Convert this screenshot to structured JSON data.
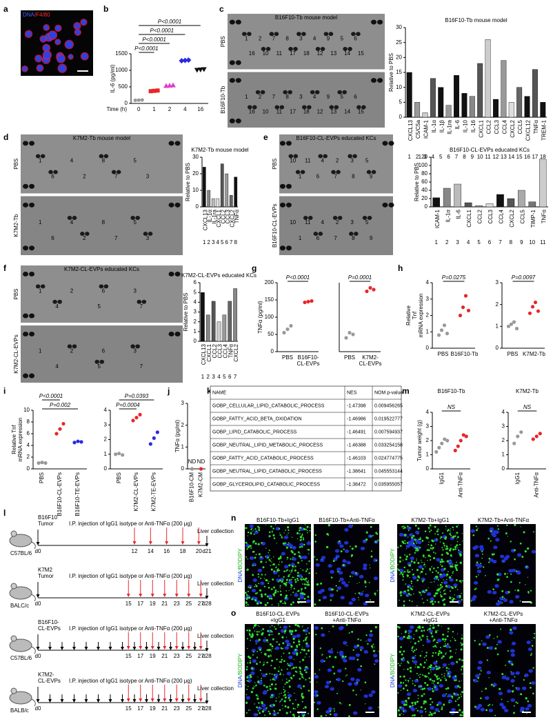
{
  "a": {
    "letter": "a",
    "stain": [
      "DNA",
      "/F4/80"
    ]
  },
  "b": {
    "letter": "b",
    "chart": {
      "type": "dot",
      "ylabel": "IL-6 (pg/ml)",
      "xlabel": "Time (h)",
      "ylim": [
        0,
        1500
      ],
      "yticks": [
        0,
        500,
        1000,
        1500
      ],
      "groups": [
        {
          "name": 0,
          "color": "#999999",
          "marker": "circle",
          "values": [
            95,
            100,
            105
          ]
        },
        {
          "name": 1,
          "color": "#e8262a",
          "marker": "square",
          "values": [
            370,
            380,
            390
          ]
        },
        {
          "name": 2,
          "color": "#e040c8",
          "marker": "triangle",
          "values": [
            530,
            540,
            550
          ]
        },
        {
          "name": 4,
          "color": "#2a2ae0",
          "marker": "diamond",
          "values": [
            1290,
            1300,
            1310
          ]
        },
        {
          "name": 16,
          "color": "#111111",
          "marker": "triangle-down",
          "values": [
            1010,
            1020,
            1030
          ]
        }
      ],
      "annotations": [
        "P<0.0001",
        "P<0.0001",
        "P<0.0001",
        "P<0.0001"
      ]
    }
  },
  "c": {
    "letter": "c",
    "blot": {
      "title": "B16F10-Tb mouse model",
      "rows": [
        {
          "name": "PBS",
          "spots": [
            1,
            2,
            7,
            8,
            3,
            4,
            9,
            5,
            6,
            16,
            10,
            11,
            17,
            18,
            12,
            13,
            14,
            15
          ]
        },
        {
          "name": "B16F10-Tb",
          "spots": [
            1,
            2,
            7,
            8,
            3,
            4,
            9,
            5,
            6,
            16,
            10,
            11,
            17,
            18,
            12,
            13,
            14,
            15
          ]
        }
      ]
    },
    "chart": {
      "type": "bar",
      "title": "B16F10-Tb mouse model",
      "ylabel": "Relative to PBS",
      "ylim": [
        0,
        30
      ],
      "yticks": [
        0,
        5,
        10,
        15,
        20,
        25,
        30
      ],
      "categories": [
        "CXCL13",
        "C5/C5a",
        "ICAM-1",
        "IL-1α",
        "IL-1β",
        "IL-1ra",
        "IL-6",
        "IL-10",
        "IL-16",
        "CXCL1",
        "CCL2",
        "CCL3",
        "CCL4",
        "CXCL2",
        "CCL5",
        "CXCL12",
        "TNFα",
        "TREM-1"
      ],
      "indices": [
        1,
        2,
        3,
        4,
        5,
        6,
        7,
        8,
        9,
        10,
        11,
        12,
        13,
        14,
        15,
        16,
        17,
        18
      ],
      "values": [
        15,
        5,
        1.5,
        13,
        10,
        4,
        14,
        8,
        7,
        18,
        26,
        6,
        19,
        5,
        10,
        7,
        16,
        5
      ],
      "colors": [
        "#111111",
        "#999999",
        "#cccccc",
        "#555555",
        "#111111",
        "#999999",
        "#111111",
        "#111111",
        "#888888",
        "#555555",
        "#cccccc",
        "#111111",
        "#999999",
        "#dddddd",
        "#666666",
        "#111111",
        "#555555",
        "#111111"
      ]
    }
  },
  "d": {
    "letter": "d",
    "blot": {
      "title": "K7M2-Tb mouse model",
      "rows": [
        {
          "name": "PBS",
          "spots": [
            1,
            4,
            8,
            5,
            6,
            2,
            7,
            3
          ]
        },
        {
          "name": "K7M2-Tb",
          "spots": [
            1,
            4,
            8,
            5,
            6,
            2,
            7,
            3
          ]
        }
      ]
    },
    "chart": {
      "type": "bar",
      "title": "K7M2-Tb mouse model",
      "ylabel": "Relative to PBS",
      "ylim": [
        0,
        30
      ],
      "yticks": [
        0,
        10,
        20,
        30
      ],
      "categories": [
        "CXCL13",
        "IL-1α",
        "IL-1ra",
        "CXCL1",
        "CCL2",
        "CCL3",
        "CXCL2",
        "TNFα"
      ],
      "indices": [
        1,
        2,
        3,
        4,
        5,
        6,
        7,
        8
      ],
      "values": [
        24,
        10,
        5,
        5,
        26,
        20,
        7,
        18
      ],
      "colors": [
        "#111111",
        "#888888",
        "#bbbbbb",
        "#dddddd",
        "#555555",
        "#999999",
        "#666666",
        "#111111"
      ]
    }
  },
  "e": {
    "letter": "e",
    "blot": {
      "title": "B16F10-CL-EVPs educated KCs",
      "rows": [
        {
          "name": "PBS",
          "spots": [
            10,
            11,
            4,
            2,
            3,
            5,
            1,
            6,
            7,
            8,
            9
          ]
        },
        {
          "name": "B16F10-CL-EVPs",
          "spots": [
            10,
            11,
            4,
            2,
            3,
            5,
            1,
            6,
            7,
            8,
            9
          ]
        }
      ]
    },
    "chart": {
      "type": "bar",
      "title": "B16F10-CL-EVPs educated KCs",
      "ylabel": "Relative to PBS",
      "ylim": [
        0,
        120
      ],
      "yticks": [
        0,
        20,
        40,
        60,
        80,
        100,
        120
      ],
      "categories": [
        "ICAM-1",
        "IL-1α",
        "IL-6",
        "CXCL1",
        "CCL2",
        "CCL3",
        "CCL4",
        "CXCL2",
        "CCL5",
        "TIMP-1",
        "TNFα"
      ],
      "indices": [
        1,
        2,
        3,
        4,
        5,
        6,
        7,
        8,
        9,
        10,
        11
      ],
      "values": [
        22,
        45,
        55,
        10,
        3,
        8,
        30,
        20,
        40,
        12,
        115
      ],
      "colors": [
        "#111111",
        "#888888",
        "#bbbbbb",
        "#555555",
        "#999999",
        "#dddddd",
        "#111111",
        "#555555",
        "#aaaaaa",
        "#777777",
        "#cccccc"
      ]
    }
  },
  "f": {
    "letter": "f",
    "blot": {
      "title": "K7M2-CL-EVPs educated KCs",
      "rows": [
        {
          "name": "PBS",
          "spots": [
            1,
            2,
            6,
            3,
            4,
            5,
            7
          ]
        },
        {
          "name": "K7M2-CL-EVPs",
          "spots": [
            1,
            2,
            6,
            3,
            4,
            5,
            7
          ]
        }
      ]
    },
    "chart": {
      "type": "bar",
      "title": "K7M2-CL-EVPs educated KCs",
      "ylabel": "Relative to PBS",
      "ylim": [
        0,
        6
      ],
      "yticks": [
        0,
        1,
        2,
        3,
        4,
        5,
        6
      ],
      "categories": [
        "CXCL13",
        "CXCL1",
        "CCL2",
        "CCL3",
        "CCL4",
        "TNFα",
        "CXCL2"
      ],
      "indices": [
        1,
        2,
        3,
        4,
        5,
        6,
        7
      ],
      "values": [
        5,
        2.7,
        4.1,
        2,
        2.7,
        4.1,
        5.4
      ],
      "colors": [
        "#111111",
        "#888888",
        "#555555",
        "#cccccc",
        "#999999",
        "#666666",
        "#888888"
      ]
    }
  },
  "g": {
    "letter": "g",
    "charts": [
      {
        "type": "dot",
        "ylabel": "TNFα (pg/ml)",
        "ylim": [
          0,
          200
        ],
        "yticks": [
          0,
          50,
          100,
          150,
          200
        ],
        "groups": [
          {
            "name": "PBS",
            "color": "#999999",
            "marker": "circle",
            "values": [
              55,
              65,
              75
            ]
          },
          {
            "name": [
              "B16F10-",
              "CL-EVPs"
            ],
            "color": "#e8262a",
            "marker": "circle",
            "values": [
              143,
              145,
              147
            ]
          }
        ],
        "annotations": [
          "P<0.0001"
        ]
      },
      {
        "type": "dot",
        "ylim": [
          0,
          200
        ],
        "groups": [
          {
            "name": "PBS",
            "color": "#999999",
            "marker": "circle",
            "values": [
              40,
              55,
              50
            ]
          },
          {
            "name": [
              "K7M2-",
              "CL-EVPs"
            ],
            "color": "#e8262a",
            "marker": "circle",
            "values": [
              175,
              185,
              180
            ]
          }
        ],
        "annotations": [
          "P=0.0001"
        ]
      }
    ]
  },
  "h": {
    "letter": "h",
    "charts": [
      {
        "type": "dot",
        "ylabel": [
          "Relative",
          "Tnf",
          "mRNA expression"
        ],
        "ylim": [
          0,
          4
        ],
        "yticks": [
          0,
          1,
          2,
          3,
          4
        ],
        "groups": [
          {
            "name": "PBS",
            "color": "#999999",
            "marker": "circle",
            "values": [
              0.8,
              1.1,
              1.4,
              0.9
            ]
          },
          {
            "name": "B16F10-Tb",
            "color": "#e8262a",
            "marker": "circle",
            "values": [
              2.0,
              2.5,
              3.2,
              2.3
            ]
          }
        ],
        "annotations": [
          "P=0.0275"
        ]
      },
      {
        "type": "dot",
        "ylim": [
          0,
          3
        ],
        "yticks": [
          0,
          1,
          2,
          3
        ],
        "groups": [
          {
            "name": "PBS",
            "color": "#999999",
            "marker": "circle",
            "values": [
              1.0,
              1.1,
              1.2,
              0.9
            ]
          },
          {
            "name": "K7M2-Tb",
            "color": "#e8262a",
            "marker": "circle",
            "values": [
              1.6,
              1.9,
              2.1,
              1.7
            ]
          }
        ],
        "annotations": [
          "P=0.0097"
        ]
      }
    ]
  },
  "i": {
    "letter": "i",
    "charts": [
      {
        "type": "dot",
        "ylabel": [
          "Relative Tnf",
          "mRNA expression"
        ],
        "ylim": [
          0,
          10
        ],
        "yticks": [
          0,
          2,
          4,
          6,
          8,
          10
        ],
        "groups": [
          {
            "name": "PBS",
            "color": "#999999",
            "marker": "circle",
            "values": [
              1,
              1.1,
              1.0
            ]
          },
          {
            "name": "B16F10-CL-EVPs",
            "color": "#e8262a",
            "marker": "circle",
            "values": [
              6,
              6.8,
              7.7
            ]
          },
          {
            "name": "B16F10-TE-EVPs",
            "color": "#2a2ae0",
            "marker": "circle",
            "values": [
              4.5,
              4.7,
              4.6
            ]
          }
        ],
        "annotations": [
          "P<0.0001",
          "P=0.002"
        ]
      },
      {
        "type": "dot",
        "ylim": [
          0,
          4
        ],
        "yticks": [
          0,
          1,
          2,
          3,
          4
        ],
        "groups": [
          {
            "name": "PBS",
            "color": "#999999",
            "marker": "circle",
            "values": [
              1,
              1.05,
              0.95
            ]
          },
          {
            "name": "K7M2-CL-EVPs",
            "color": "#e8262a",
            "marker": "circle",
            "values": [
              3.3,
              3.5,
              3.7
            ]
          },
          {
            "name": "K7M2-TE-EVPs",
            "color": "#2a2ae0",
            "marker": "circle",
            "values": [
              1.7,
              2.1,
              2.5
            ]
          }
        ],
        "annotations": [
          "P=0.0393",
          "P=0.0004"
        ]
      }
    ]
  },
  "j": {
    "letter": "j",
    "chart": {
      "type": "dot",
      "ylabel": "TNFα (pg/ml)",
      "ylim": [
        0,
        3
      ],
      "yticks": [
        0,
        1,
        2,
        3
      ],
      "groups": [
        {
          "name": "B16F10-CM",
          "color": "#999999",
          "marker": "circle",
          "values": [
            0
          ],
          "value_labels": [
            "ND"
          ]
        },
        {
          "name": "K7M2-CM",
          "color": "#e8262a",
          "marker": "circle",
          "values": [
            0
          ],
          "value_labels": [
            "ND"
          ]
        }
      ]
    }
  },
  "k": {
    "letter": "k",
    "table": {
      "header": [
        "NAME",
        "NES",
        "NOM p-value"
      ],
      "rows": [
        [
          "GOBP_CELLULAR_LIPID_CATABOLIC_PROCESS",
          -1.47398,
          0.009456265
        ],
        [
          "GOBP_FATTY_ACID_BETA_OXIDATION",
          -1.46986,
          0.019522777
        ],
        [
          "GOBP_LIPID_CATABOLIC_PROCESS",
          -1.46491,
          0.007594937
        ],
        [
          "GOBP_NEUTRAL_LIPID_METABOLIC_PROCESS",
          -1.46388,
          0.033254158
        ],
        [
          "GOBP_FATTY_ACID_CATABOLIC_PROCESS",
          -1.46103,
          0.024774775
        ],
        [
          "GOBP_NEUTRAL_LIPID_CATABOLIC_PROCESS",
          -1.38641,
          0.045553144
        ],
        [
          "GOBP_GLYCEROLIPID_CATABOLIC_PROCESS",
          -1.38472,
          0.035955057
        ]
      ]
    }
  },
  "l": {
    "letter": "l",
    "timelines": [
      {
        "model": [
          "B16F10",
          "Tumor"
        ],
        "strain": "C57BL/6",
        "start": "d0",
        "injection": "I.P. injection of IgG1 isotype or Anti-TNFα (200 μg)",
        "days": [
          12,
          14,
          16,
          18,
          20
        ],
        "collection": "Liver collection",
        "end": "d21"
      },
      {
        "model": [
          "K7M2",
          "Tumor"
        ],
        "strain": "BALC/c",
        "start": "d0",
        "injection": "I.P. injection of IgG1 isotype or Anti-TNFα (200 μg)",
        "days": [
          15,
          17,
          19,
          21,
          23,
          25,
          27
        ],
        "collection": "Liver collection",
        "end": "d28"
      },
      {
        "model": [
          "B16F10-",
          "CL-EVPs"
        ],
        "strain": "C57BL/6",
        "start": "d0",
        "injection": "I.P. injection of IgG1 isotype or Anti-TNFα (200 μg)",
        "days": [
          15,
          17,
          19,
          21,
          23,
          25,
          27
        ],
        "collection": "Liver collection",
        "end": "d28"
      },
      {
        "model": [
          "K7M2-",
          "CL-EVPs"
        ],
        "strain": "BALB/c",
        "start": "d0",
        "injection": "I.P. injection of IgG1 isotype or Anti-TNFα (200 μg)",
        "days": [
          15,
          17,
          19,
          21,
          23,
          25,
          27
        ],
        "collection": "Liver collection",
        "end": "d28"
      }
    ]
  },
  "m": {
    "letter": "m",
    "charts": [
      {
        "type": "dot",
        "title": "B16F10-Tb",
        "ylabel": "Tumor weight (g)",
        "ylim": [
          0,
          4
        ],
        "yticks": [
          0,
          1,
          2,
          3,
          4
        ],
        "groups": [
          {
            "name": "IgG1",
            "color": "#999999",
            "marker": "circle",
            "values": [
              1.2,
              1.5,
              1.8,
              2.1,
              2.0
            ]
          },
          {
            "name": "Anti-TNFα",
            "color": "#e8262a",
            "marker": "circle",
            "values": [
              1.3,
              1.6,
              2.0,
              2.4,
              2.3
            ]
          }
        ],
        "annotations": [
          "NS"
        ]
      },
      {
        "type": "dot",
        "title": "K7M2-Tb",
        "ylim": [
          0,
          4
        ],
        "yticks": [
          0,
          1,
          2,
          3,
          4
        ],
        "groups": [
          {
            "name": "IgG1",
            "color": "#999999",
            "marker": "circle",
            "values": [
              1.8,
              2.3,
              2.6
            ]
          },
          {
            "name": "Anti-TNFα",
            "color": "#e8262a",
            "marker": "circle",
            "values": [
              2.1,
              2.3,
              2.5
            ]
          }
        ],
        "annotations": [
          "NS"
        ]
      }
    ]
  },
  "n": {
    "letter": "n",
    "stain": [
      "DNA",
      "/BODIPY"
    ],
    "images": [
      [
        "B16F10-Tb+IgG1"
      ],
      [
        "B16F10-Tb+Anti-TNFα"
      ],
      [
        "K7M2-Tb+IgG1"
      ],
      [
        "K7M2-Tb+Anti-TNFα"
      ]
    ]
  },
  "o": {
    "letter": "o",
    "stain": [
      "DNA",
      "/BODIPY"
    ],
    "images": [
      [
        "B16F10-CL-EVPs",
        "+IgG1"
      ],
      [
        "B16F10-CL-EVPs",
        "+Anti-TNFα"
      ],
      [
        "K7M2-CL-EVPs",
        "+IgG1"
      ],
      [
        "K7M2-CL-EVPs",
        "+Anti-TNFα"
      ]
    ]
  }
}
